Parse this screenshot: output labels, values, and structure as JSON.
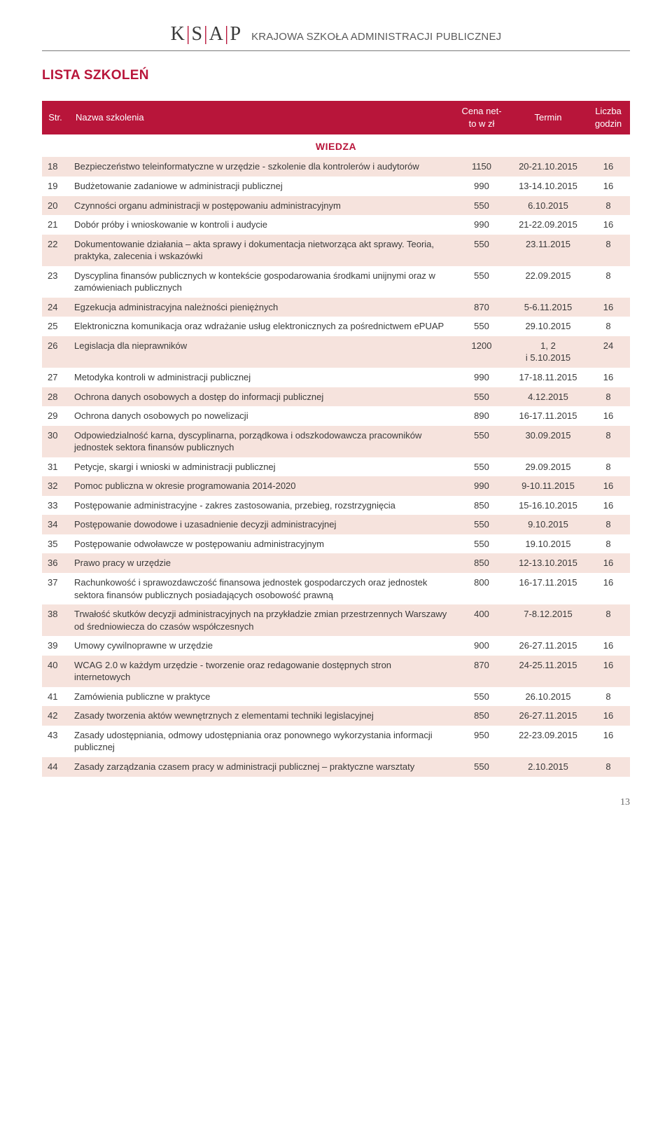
{
  "header": {
    "logo_letters": [
      "K",
      "S",
      "A",
      "P"
    ],
    "logo_separator": "|",
    "org_name": "KRAJOWA SZKOŁA ADMINISTRACJI PUBLICZNEJ"
  },
  "title": "LISTA SZKOLEŃ",
  "columns": {
    "str": "Str.",
    "name": "Nazwa szkolenia",
    "cena": "Cena net-\nto w zł",
    "termin": "Termin",
    "godzin": "Liczba\ngodzin"
  },
  "section_label": "WIEDZA",
  "rows": [
    {
      "str": "18",
      "name": "Bezpieczeństwo teleinformatyczne w urzędzie - szkolenie dla kontrolerów i audytorów",
      "cena": "1150",
      "termin": "20-21.10.2015",
      "godzin": "16"
    },
    {
      "str": "19",
      "name": "Budżetowanie zadaniowe w administracji publicznej",
      "cena": "990",
      "termin": "13-14.10.2015",
      "godzin": "16"
    },
    {
      "str": "20",
      "name": "Czynności organu administracji w postępowaniu administracyjnym",
      "cena": "550",
      "termin": "6.10.2015",
      "godzin": "8"
    },
    {
      "str": "21",
      "name": "Dobór próby i wnioskowanie w kontroli i audycie",
      "cena": "990",
      "termin": "21-22.09.2015",
      "godzin": "16"
    },
    {
      "str": "22",
      "name": "Dokumentowanie działania – akta sprawy i dokumentacja nietworząca akt sprawy. Teoria, praktyka, zalecenia i wskazówki",
      "cena": "550",
      "termin": "23.11.2015",
      "godzin": "8"
    },
    {
      "str": "23",
      "name": "Dyscyplina finansów publicznych w kontekście gospodarowania środkami unijnymi oraz w zamówieniach publicznych",
      "cena": "550",
      "termin": "22.09.2015",
      "godzin": "8"
    },
    {
      "str": "24",
      "name": "Egzekucja administracyjna należności pieniężnych",
      "cena": "870",
      "termin": "5-6.11.2015",
      "godzin": "16"
    },
    {
      "str": "25",
      "name": "Elektroniczna komunikacja oraz wdrażanie usług elektronicznych za pośrednictwem ePUAP",
      "cena": "550",
      "termin": "29.10.2015",
      "godzin": "8"
    },
    {
      "str": "26",
      "name": "Legislacja dla nieprawników",
      "cena": "1200",
      "termin": "1, 2\ni 5.10.2015",
      "godzin": "24"
    },
    {
      "str": "27",
      "name": "Metodyka kontroli w administracji publicznej",
      "cena": "990",
      "termin": "17-18.11.2015",
      "godzin": "16"
    },
    {
      "str": "28",
      "name": "Ochrona danych osobowych a dostęp do informacji publicznej",
      "cena": "550",
      "termin": "4.12.2015",
      "godzin": "8"
    },
    {
      "str": "29",
      "name": "Ochrona danych osobowych po nowelizacji",
      "cena": "890",
      "termin": "16-17.11.2015",
      "godzin": "16"
    },
    {
      "str": "30",
      "name": "Odpowiedzialność karna, dyscyplinarna, porządkowa i odszkodowawcza pracowników jednostek sektora finansów publicznych",
      "cena": "550",
      "termin": "30.09.2015",
      "godzin": "8"
    },
    {
      "str": "31",
      "name": "Petycje, skargi i wnioski w administracji publicznej",
      "cena": "550",
      "termin": "29.09.2015",
      "godzin": "8"
    },
    {
      "str": "32",
      "name": "Pomoc publiczna w okresie programowania 2014-2020",
      "cena": "990",
      "termin": "9-10.11.2015",
      "godzin": "16"
    },
    {
      "str": "33",
      "name": "Postępowanie administracyjne - zakres zastosowania, przebieg, rozstrzygnięcia",
      "cena": "850",
      "termin": "15-16.10.2015",
      "godzin": "16"
    },
    {
      "str": "34",
      "name": "Postępowanie dowodowe i uzasadnienie decyzji administracyjnej",
      "cena": "550",
      "termin": "9.10.2015",
      "godzin": "8"
    },
    {
      "str": "35",
      "name": "Postępowanie odwoławcze  w postępowaniu administracyjnym",
      "cena": "550",
      "termin": "19.10.2015",
      "godzin": "8"
    },
    {
      "str": "36",
      "name": "Prawo pracy w urzędzie",
      "cena": "850",
      "termin": "12-13.10.2015",
      "godzin": "16"
    },
    {
      "str": "37",
      "name": "Rachunkowość i sprawozdawczość finansowa jednostek gospodarczych oraz jednostek sektora finansów publicznych posiadających osobowość prawną",
      "cena": "800",
      "termin": "16-17.11.2015",
      "godzin": "16"
    },
    {
      "str": "38",
      "name": "Trwałość skutków decyzji administracyjnych na przykładzie zmian przestrzennych Warszawy od średniowiecza do czasów współczesnych",
      "cena": "400",
      "termin": "7-8.12.2015",
      "godzin": "8"
    },
    {
      "str": "39",
      "name": "Umowy cywilnoprawne w urzędzie",
      "cena": "900",
      "termin": "26-27.11.2015",
      "godzin": "16"
    },
    {
      "str": "40",
      "name": "WCAG 2.0 w każdym urzędzie - tworzenie oraz redagowanie dostępnych stron internetowych",
      "cena": "870",
      "termin": "24-25.11.2015",
      "godzin": "16"
    },
    {
      "str": "41",
      "name": "Zamówienia publiczne w praktyce",
      "cena": "550",
      "termin": "26.10.2015",
      "godzin": "8"
    },
    {
      "str": "42",
      "name": "Zasady tworzenia aktów wewnętrznych z elementami techniki legislacyjnej",
      "cena": "850",
      "termin": "26-27.11.2015",
      "godzin": "16"
    },
    {
      "str": "43",
      "name": "Zasady udostępniania, odmowy udostępniania oraz ponownego wykorzystania informacji publicznej",
      "cena": "950",
      "termin": "22-23.09.2015",
      "godzin": "16"
    },
    {
      "str": "44",
      "name": "Zasady zarządzania czasem pracy w administracji publicznej – praktyczne warsztaty",
      "cena": "550",
      "termin": "2.10.2015",
      "godzin": "8"
    }
  ],
  "page_number": "13",
  "colors": {
    "brand_red": "#b8153a",
    "row_bg": "#f6e3dd",
    "text": "#3a3a3a",
    "white": "#ffffff",
    "rule": "#7a7a7a"
  },
  "typography": {
    "title_fontsize_pt": 14,
    "body_fontsize_pt": 10,
    "logo_fontsize_pt": 21
  }
}
